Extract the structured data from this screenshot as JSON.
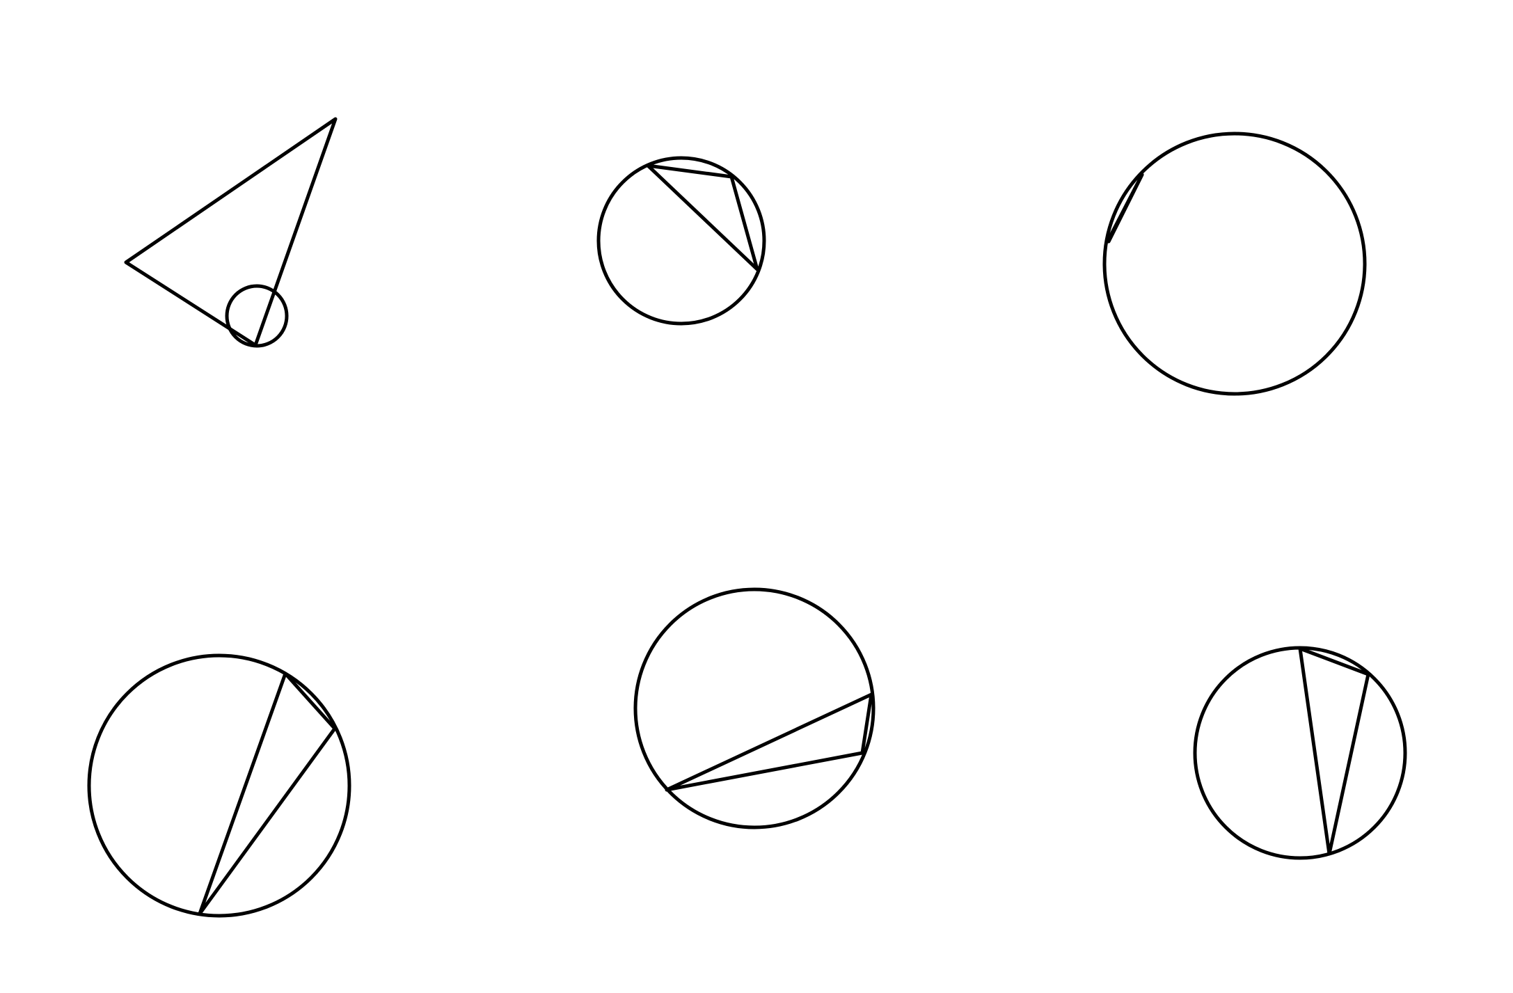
{
  "diagram": {
    "background": "#ffffff",
    "stroke_color": "#000000",
    "figures": [
      {
        "name": "figure-triangle-small-circle",
        "shapes": [
          "triangle",
          "circle"
        ]
      },
      {
        "name": "figure-circle-inscribed-triangle-top",
        "shapes": [
          "circle",
          "inscribed-triangle"
        ]
      },
      {
        "name": "figure-circle-short-chord",
        "shapes": [
          "circle",
          "chord"
        ]
      },
      {
        "name": "figure-circle-two-chords-bottom-left",
        "shapes": [
          "circle",
          "inscribed-triangle"
        ]
      },
      {
        "name": "figure-circle-inscribed-triangle-bottom-center",
        "shapes": [
          "circle",
          "inscribed-triangle"
        ]
      },
      {
        "name": "figure-circle-inscribed-triangle-bottom-right",
        "shapes": [
          "circle",
          "inscribed-triangle"
        ]
      }
    ]
  }
}
